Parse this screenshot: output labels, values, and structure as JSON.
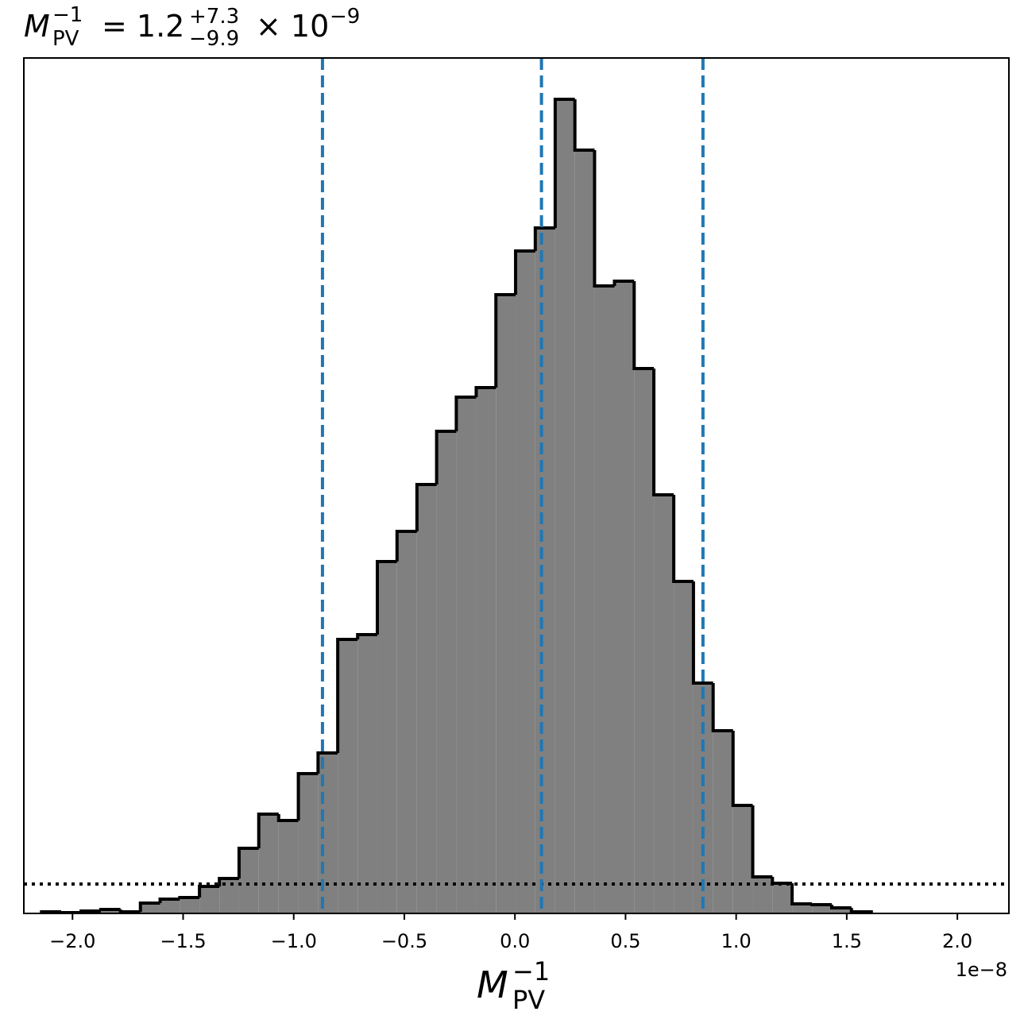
{
  "chart_data": {
    "type": "histogram",
    "title": {
      "base": "M",
      "sub": "PV",
      "sup": "−1",
      "eq": "= 1.2",
      "upper": "+7.3",
      "lower": "−9.9",
      "times": "× 10",
      "exp": "−9"
    },
    "xlabel": {
      "base": "M",
      "sub": "PV",
      "sup": "−1"
    },
    "offset_text": "1e−8",
    "bins": [
      -2.14,
      -2.051,
      -1.961,
      -1.872,
      -1.783,
      -1.693,
      -1.604,
      -1.515,
      -1.426,
      -1.336,
      -1.247,
      -1.158,
      -1.068,
      -0.979,
      -0.89,
      -0.801,
      -0.711,
      -0.622,
      -0.533,
      -0.443,
      -0.354,
      -0.265,
      -0.175,
      -0.086,
      0.003,
      0.092,
      0.182,
      0.271,
      0.36,
      0.45,
      0.539,
      0.628,
      0.718,
      0.807,
      0.896,
      0.986,
      1.075,
      1.164,
      1.253,
      1.343,
      1.432,
      1.521,
      1.611
    ],
    "values": [
      2,
      1,
      3,
      5,
      2,
      13,
      18,
      20,
      34,
      44,
      82,
      125,
      117,
      176,
      202,
      345,
      351,
      443,
      481,
      540,
      607,
      650,
      662,
      779,
      834,
      863,
      1025,
      961,
      790,
      796,
      686,
      527,
      418,
      290,
      230,
      136,
      46,
      38,
      12,
      11,
      7,
      2
    ],
    "color": "#808080",
    "edge_color": "#000000",
    "xlim": [
      -2.22,
      2.233
    ],
    "ylim": [
      0,
      1077
    ],
    "xticks": [
      {
        "value": -2.0,
        "label": "−2.0"
      },
      {
        "value": -1.5,
        "label": "−1.5"
      },
      {
        "value": -1.0,
        "label": "−1.0"
      },
      {
        "value": -0.5,
        "label": "−0.5"
      },
      {
        "value": 0.0,
        "label": "0.0"
      },
      {
        "value": 0.5,
        "label": "0.5"
      },
      {
        "value": 1.0,
        "label": "1.0"
      },
      {
        "value": 1.5,
        "label": "1.5"
      },
      {
        "value": 2.0,
        "label": "2.0"
      }
    ],
    "vlines": [
      -0.87,
      0.12,
      0.85
    ],
    "vline_color": "#1f77b4",
    "hline": 37,
    "hline_color": "#000000",
    "grid": false
  }
}
